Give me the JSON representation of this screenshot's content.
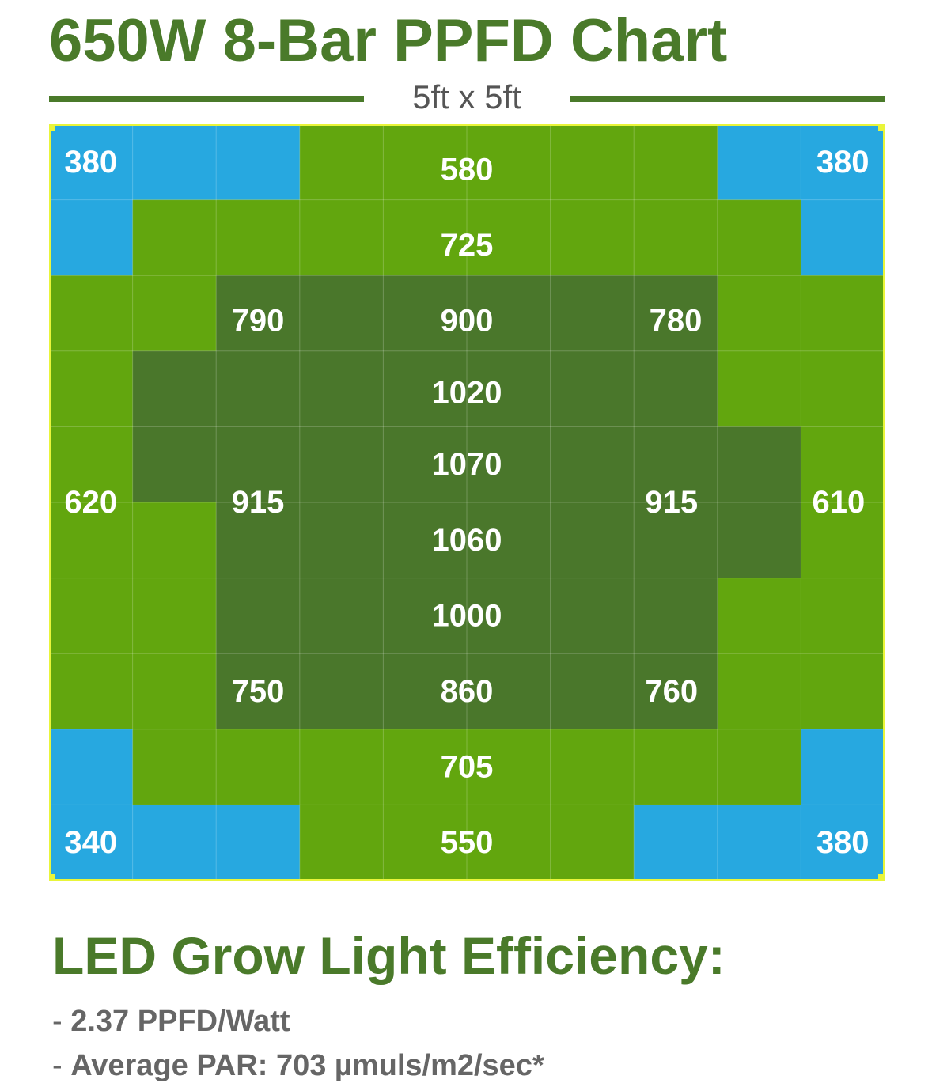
{
  "header": {
    "title": "650W 8-Bar PPFD Chart",
    "subtitle": "5ft x 5ft"
  },
  "chart_data": {
    "type": "heatmap",
    "grid": {
      "rows": 10,
      "cols": 10
    },
    "colors": {
      "low": "#27a8e0",
      "mid": "#62a60e",
      "high": "#4a772b",
      "border": "#e9f53a",
      "gridline": "rgba(255,255,255,0.22)"
    },
    "cells": [
      [
        "low",
        "low",
        "low",
        "mid",
        "mid",
        "mid",
        "mid",
        "mid",
        "low",
        "low"
      ],
      [
        "low",
        "mid",
        "mid",
        "mid",
        "mid",
        "mid",
        "mid",
        "mid",
        "mid",
        "low"
      ],
      [
        "mid",
        "mid",
        "high",
        "high",
        "high",
        "high",
        "high",
        "high",
        "mid",
        "mid"
      ],
      [
        "mid",
        "high",
        "high",
        "high",
        "high",
        "high",
        "high",
        "high",
        "mid",
        "mid"
      ],
      [
        "mid",
        "high",
        "high",
        "high",
        "high",
        "high",
        "high",
        "high",
        "high",
        "mid"
      ],
      [
        "mid",
        "mid",
        "high",
        "high",
        "high",
        "high",
        "high",
        "high",
        "high",
        "mid"
      ],
      [
        "mid",
        "mid",
        "high",
        "high",
        "high",
        "high",
        "high",
        "high",
        "mid",
        "mid"
      ],
      [
        "mid",
        "mid",
        "high",
        "high",
        "high",
        "high",
        "high",
        "high",
        "mid",
        "mid"
      ],
      [
        "low",
        "mid",
        "mid",
        "mid",
        "mid",
        "mid",
        "mid",
        "mid",
        "mid",
        "low"
      ],
      [
        "low",
        "low",
        "low",
        "mid",
        "mid",
        "mid",
        "mid",
        "low",
        "low",
        "low"
      ]
    ],
    "readings": [
      {
        "value": "380",
        "row": 0,
        "col": 0.5
      },
      {
        "value": "580",
        "row": 0.1,
        "col": 5
      },
      {
        "value": "380",
        "row": 0,
        "col": 9.5
      },
      {
        "value": "725",
        "row": 1.1,
        "col": 5
      },
      {
        "value": "790",
        "row": 2.1,
        "col": 2.5
      },
      {
        "value": "900",
        "row": 2.1,
        "col": 5
      },
      {
        "value": "780",
        "row": 2.1,
        "col": 7.5
      },
      {
        "value": "1020",
        "row": 3.05,
        "col": 5
      },
      {
        "value": "1070",
        "row": 4,
        "col": 5
      },
      {
        "value": "620",
        "row": 4.5,
        "col": 0.5
      },
      {
        "value": "915",
        "row": 4.5,
        "col": 2.5
      },
      {
        "value": "915",
        "row": 4.5,
        "col": 7.45
      },
      {
        "value": "610",
        "row": 4.5,
        "col": 9.45
      },
      {
        "value": "1060",
        "row": 5,
        "col": 5
      },
      {
        "value": "1000",
        "row": 6,
        "col": 5
      },
      {
        "value": "750",
        "row": 7,
        "col": 2.5
      },
      {
        "value": "860",
        "row": 7,
        "col": 5
      },
      {
        "value": "760",
        "row": 7,
        "col": 7.45
      },
      {
        "value": "705",
        "row": 8,
        "col": 5
      },
      {
        "value": "340",
        "row": 9,
        "col": 0.5
      },
      {
        "value": "550",
        "row": 9,
        "col": 5
      },
      {
        "value": "380",
        "row": 9,
        "col": 9.5
      }
    ]
  },
  "efficiency": {
    "heading": "LED Grow Light Efficiency:",
    "items": [
      {
        "dash": "- ",
        "text": "2.37 PPFD/Watt"
      },
      {
        "dash": "- ",
        "text": "Average PAR: 703 µmuls/m2/sec*"
      }
    ]
  }
}
